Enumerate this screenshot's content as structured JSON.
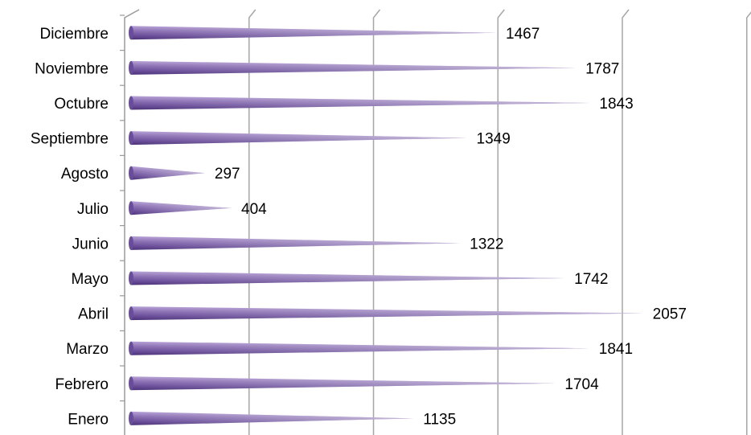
{
  "chart_data": {
    "type": "bar",
    "orientation": "horizontal",
    "bar_shape": "cone",
    "categories": [
      "Enero",
      "Febrero",
      "Marzo",
      "Abril",
      "Mayo",
      "Junio",
      "Julio",
      "Agosto",
      "Septiembre",
      "Octubre",
      "Noviembre",
      "Diciembre"
    ],
    "values": [
      1135,
      1704,
      1841,
      2057,
      1742,
      1322,
      404,
      297,
      1349,
      1843,
      1787,
      1467
    ],
    "data_labels": [
      "1135",
      "1704",
      "1841",
      "2057",
      "1742",
      "1322",
      "404",
      "297",
      "1349",
      "1843",
      "1787",
      "1467"
    ],
    "title": "",
    "xlabel": "",
    "ylabel": "",
    "xlim": [
      0,
      2500
    ],
    "x_major_unit": 500,
    "grid": "vertical",
    "legend": "none",
    "colors": {
      "bar_dark": "#5b3f8c",
      "bar_mid": "#8064a2",
      "bar_light": "#c9b8e3",
      "grid": "#a6a6a6",
      "text": "#000000"
    }
  }
}
